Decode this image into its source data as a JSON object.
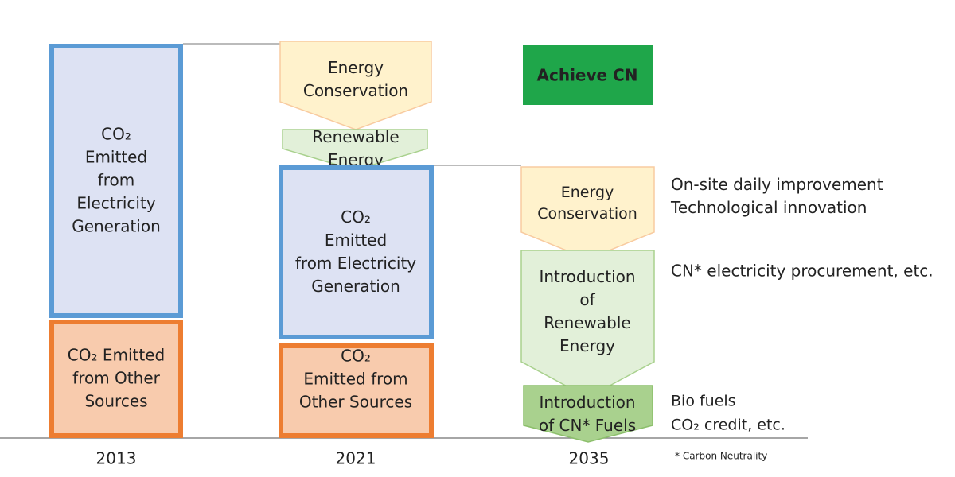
{
  "years": [
    "2013",
    "2021",
    "2035"
  ],
  "y2013": {
    "electricity": [
      "CO₂",
      "Emitted",
      "from",
      "Electricity",
      "Generation"
    ],
    "other": [
      "CO₂ Emitted",
      "from Other",
      "Sources"
    ]
  },
  "y2021": {
    "energy_conservation": [
      "Energy",
      "Conservation"
    ],
    "renewable_energy": [
      "Renewable",
      "Energy"
    ],
    "electricity": [
      "CO₂",
      "Emitted",
      "from Electricity",
      "Generation"
    ],
    "other": [
      "CO₂",
      "Emitted from",
      "Other Sources"
    ]
  },
  "y2035": {
    "goal": "Achieve CN",
    "energy_conservation": [
      "Energy",
      "Conservation"
    ],
    "renewable_energy": [
      "Introduction",
      "of",
      "Renewable",
      "Energy"
    ],
    "cn_fuels": [
      "Introduction",
      "of CN* Fuels"
    ]
  },
  "notes": {
    "energy_conservation": [
      "On-site daily improvement",
      "Technological innovation"
    ],
    "renewable_energy": [
      "CN* electricity procurement, etc."
    ],
    "cn_fuels": [
      "Bio fuels",
      "CO₂ credit, etc."
    ]
  },
  "footnote": "* Carbon Neutrality"
}
